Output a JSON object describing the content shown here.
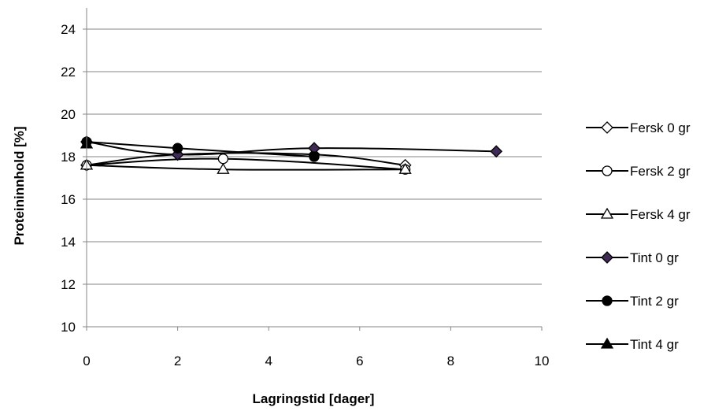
{
  "chart_data": {
    "type": "scatter",
    "xlabel": "Lagringstid [dager]",
    "ylabel": "Proteininnhold [%]",
    "xlim": [
      0,
      10
    ],
    "ylim": [
      10,
      25
    ],
    "x_ticks": [
      0,
      2,
      4,
      6,
      8,
      10
    ],
    "y_ticks": [
      10,
      12,
      14,
      16,
      18,
      20,
      22,
      24
    ],
    "grid": "horizontal",
    "legend_position": "right",
    "series": [
      {
        "name": "Fersk 0 gr",
        "marker": "diamond-open",
        "x": [
          0,
          2,
          5,
          7
        ],
        "y": [
          17.6,
          18.1,
          18.1,
          17.6
        ]
      },
      {
        "name": "Fersk 2 gr",
        "marker": "circle-open",
        "x": [
          0,
          3,
          7
        ],
        "y": [
          17.6,
          17.9,
          17.4
        ]
      },
      {
        "name": "Fersk 4 gr",
        "marker": "triangle-open",
        "x": [
          0,
          3,
          7
        ],
        "y": [
          17.6,
          17.4,
          17.4
        ]
      },
      {
        "name": "Tint 0 gr",
        "marker": "diamond-filled",
        "x": [
          0,
          2,
          5,
          9
        ],
        "y": [
          18.7,
          18.1,
          18.4,
          18.25
        ]
      },
      {
        "name": "Tint 2 gr",
        "marker": "circle-filled",
        "x": [
          0,
          2,
          5
        ],
        "y": [
          18.7,
          18.4,
          18.0
        ]
      },
      {
        "name": "Tint 4 gr",
        "marker": "triangle-filled",
        "x": [
          0
        ],
        "y": [
          18.6
        ]
      }
    ],
    "colors": {
      "line": "#000000",
      "grid": "#868686",
      "tint0_fill": "#3f2a55"
    }
  }
}
